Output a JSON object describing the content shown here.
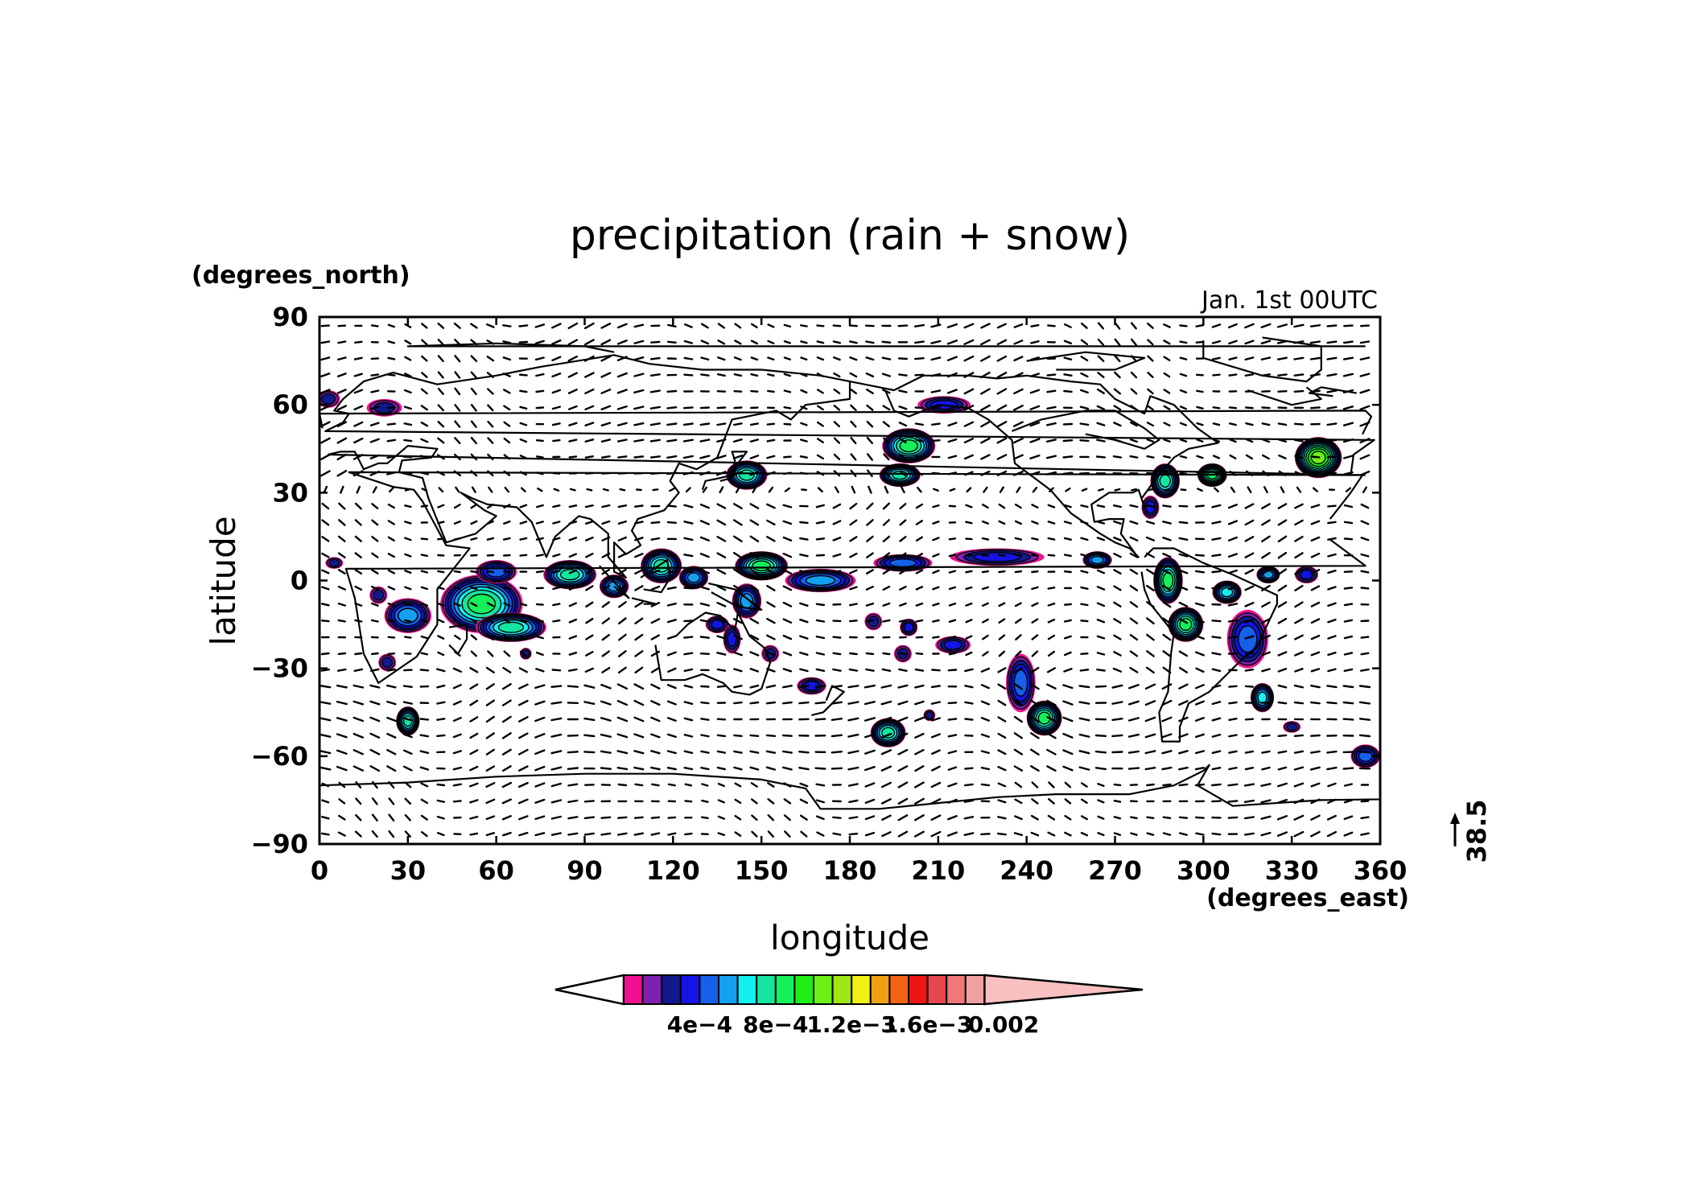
{
  "chart_data": {
    "type": "heatmap",
    "title": "precipitation (rain + snow)",
    "annotation": "Jan. 1st 00UTC",
    "xlabel": "longitude",
    "ylabel": "latitude",
    "xunits": "(degrees_east)",
    "yunits": "(degrees_north)",
    "xlim": [
      0,
      360
    ],
    "ylim": [
      -90,
      90
    ],
    "x_ticks": [
      0,
      30,
      60,
      90,
      120,
      150,
      180,
      210,
      240,
      270,
      300,
      330,
      360
    ],
    "y_ticks": [
      90,
      60,
      30,
      0,
      -30,
      -60,
      -90
    ],
    "x_tick_labels": [
      "0",
      "30",
      "60",
      "90",
      "120",
      "150",
      "180",
      "210",
      "240",
      "270",
      "300",
      "330",
      "360"
    ],
    "y_tick_labels": [
      "90",
      "60",
      "30",
      "0",
      "−30",
      "−60",
      "−90"
    ],
    "vector_reference": "38.5",
    "colorbar": {
      "labels": [
        "4e−4",
        "8e−4",
        "1.2e−3",
        "1.6e−3",
        "0.002"
      ],
      "label_values": [
        0.0004,
        0.0008,
        0.0012,
        0.0016,
        0.002
      ],
      "min": 0.0001,
      "step": 0.0001,
      "colors": [
        "#ffffff",
        "#ee1090",
        "#8020b0",
        "#101a8c",
        "#1414e6",
        "#1460e6",
        "#14a0f0",
        "#14f0f0",
        "#14e6a0",
        "#14f05a",
        "#1ef014",
        "#6ef014",
        "#a0e614",
        "#f0f014",
        "#f0a014",
        "#f06414",
        "#f01414",
        "#e64650",
        "#f07878",
        "#f0a0a0",
        "#f8c0c0"
      ]
    },
    "precip_regions": [
      {
        "lon": 3,
        "lat": 62,
        "w": 4,
        "h": 3,
        "peak": 0.0003
      },
      {
        "lon": 22,
        "lat": 59,
        "w": 6,
        "h": 3,
        "peak": 0.0003
      },
      {
        "lon": 5,
        "lat": 6,
        "w": 3,
        "h": 2,
        "peak": 0.0003
      },
      {
        "lon": 20,
        "lat": -5,
        "w": 3,
        "h": 3,
        "peak": 0.0003
      },
      {
        "lon": 30,
        "lat": -12,
        "w": 8,
        "h": 6,
        "peak": 0.0006
      },
      {
        "lon": 55,
        "lat": -8,
        "w": 14,
        "h": 10,
        "peak": 0.0009
      },
      {
        "lon": 65,
        "lat": -16,
        "w": 12,
        "h": 5,
        "peak": 0.0008
      },
      {
        "lon": 60,
        "lat": 3,
        "w": 7,
        "h": 4,
        "peak": 0.0005
      },
      {
        "lon": 85,
        "lat": 2,
        "w": 9,
        "h": 5,
        "peak": 0.0008
      },
      {
        "lon": 100,
        "lat": -2,
        "w": 5,
        "h": 4,
        "peak": 0.0006
      },
      {
        "lon": 116,
        "lat": 5,
        "w": 7,
        "h": 6,
        "peak": 0.0008
      },
      {
        "lon": 127,
        "lat": 1,
        "w": 5,
        "h": 4,
        "peak": 0.0006
      },
      {
        "lon": 150,
        "lat": 5,
        "w": 9,
        "h": 5,
        "peak": 0.0009
      },
      {
        "lon": 145,
        "lat": -7,
        "w": 5,
        "h": 6,
        "peak": 0.0006
      },
      {
        "lon": 135,
        "lat": -15,
        "w": 4,
        "h": 3,
        "peak": 0.0004
      },
      {
        "lon": 140,
        "lat": -20,
        "w": 3,
        "h": 5,
        "peak": 0.0004
      },
      {
        "lon": 153,
        "lat": -25,
        "w": 3,
        "h": 3,
        "peak": 0.0003
      },
      {
        "lon": 170,
        "lat": 0,
        "w": 12,
        "h": 4,
        "peak": 0.0006
      },
      {
        "lon": 198,
        "lat": 6,
        "w": 10,
        "h": 3,
        "peak": 0.0005
      },
      {
        "lon": 230,
        "lat": 8,
        "w": 16,
        "h": 3,
        "peak": 0.0004
      },
      {
        "lon": 264,
        "lat": 7,
        "w": 5,
        "h": 3,
        "peak": 0.0006
      },
      {
        "lon": 188,
        "lat": -14,
        "w": 3,
        "h": 3,
        "peak": 0.0003
      },
      {
        "lon": 200,
        "lat": -16,
        "w": 3,
        "h": 3,
        "peak": 0.0004
      },
      {
        "lon": 198,
        "lat": -25,
        "w": 3,
        "h": 3,
        "peak": 0.0003
      },
      {
        "lon": 215,
        "lat": -22,
        "w": 6,
        "h": 3,
        "peak": 0.0004
      },
      {
        "lon": 238,
        "lat": -35,
        "w": 5,
        "h": 10,
        "peak": 0.0005
      },
      {
        "lon": 246,
        "lat": -47,
        "w": 6,
        "h": 6,
        "peak": 0.0009
      },
      {
        "lon": 167,
        "lat": -36,
        "w": 5,
        "h": 3,
        "peak": 0.0004
      },
      {
        "lon": 193,
        "lat": -52,
        "w": 6,
        "h": 5,
        "peak": 0.0008
      },
      {
        "lon": 207,
        "lat": -46,
        "w": 2,
        "h": 2,
        "peak": 0.0003
      },
      {
        "lon": 145,
        "lat": 36,
        "w": 7,
        "h": 5,
        "peak": 0.0008
      },
      {
        "lon": 200,
        "lat": 46,
        "w": 9,
        "h": 6,
        "peak": 0.0009
      },
      {
        "lon": 197,
        "lat": 36,
        "w": 7,
        "h": 4,
        "peak": 0.0008
      },
      {
        "lon": 212,
        "lat": 60,
        "w": 9,
        "h": 3,
        "peak": 0.0004
      },
      {
        "lon": 287,
        "lat": 34,
        "w": 5,
        "h": 6,
        "peak": 0.0008
      },
      {
        "lon": 303,
        "lat": 36,
        "w": 5,
        "h": 4,
        "peak": 0.0009
      },
      {
        "lon": 339,
        "lat": 42,
        "w": 8,
        "h": 7,
        "peak": 0.0011
      },
      {
        "lon": 282,
        "lat": 25,
        "w": 3,
        "h": 4,
        "peak": 0.0004
      },
      {
        "lon": 288,
        "lat": 0,
        "w": 5,
        "h": 8,
        "peak": 0.0009
      },
      {
        "lon": 294,
        "lat": -15,
        "w": 6,
        "h": 6,
        "peak": 0.0009
      },
      {
        "lon": 308,
        "lat": -4,
        "w": 5,
        "h": 4,
        "peak": 0.0007
      },
      {
        "lon": 315,
        "lat": -20,
        "w": 7,
        "h": 10,
        "peak": 0.0005
      },
      {
        "lon": 322,
        "lat": 2,
        "w": 4,
        "h": 3,
        "peak": 0.0006
      },
      {
        "lon": 335,
        "lat": 2,
        "w": 4,
        "h": 3,
        "peak": 0.0004
      },
      {
        "lon": 320,
        "lat": -40,
        "w": 4,
        "h": 5,
        "peak": 0.0007
      },
      {
        "lon": 330,
        "lat": -50,
        "w": 3,
        "h": 2,
        "peak": 0.0003
      },
      {
        "lon": 355,
        "lat": -60,
        "w": 5,
        "h": 4,
        "peak": 0.0005
      },
      {
        "lon": 30,
        "lat": -48,
        "w": 4,
        "h": 5,
        "peak": 0.0008
      },
      {
        "lon": 23,
        "lat": -28,
        "w": 3,
        "h": 3,
        "peak": 0.0003
      },
      {
        "lon": 70,
        "lat": -25,
        "w": 2,
        "h": 2,
        "peak": 0.0003
      }
    ]
  }
}
